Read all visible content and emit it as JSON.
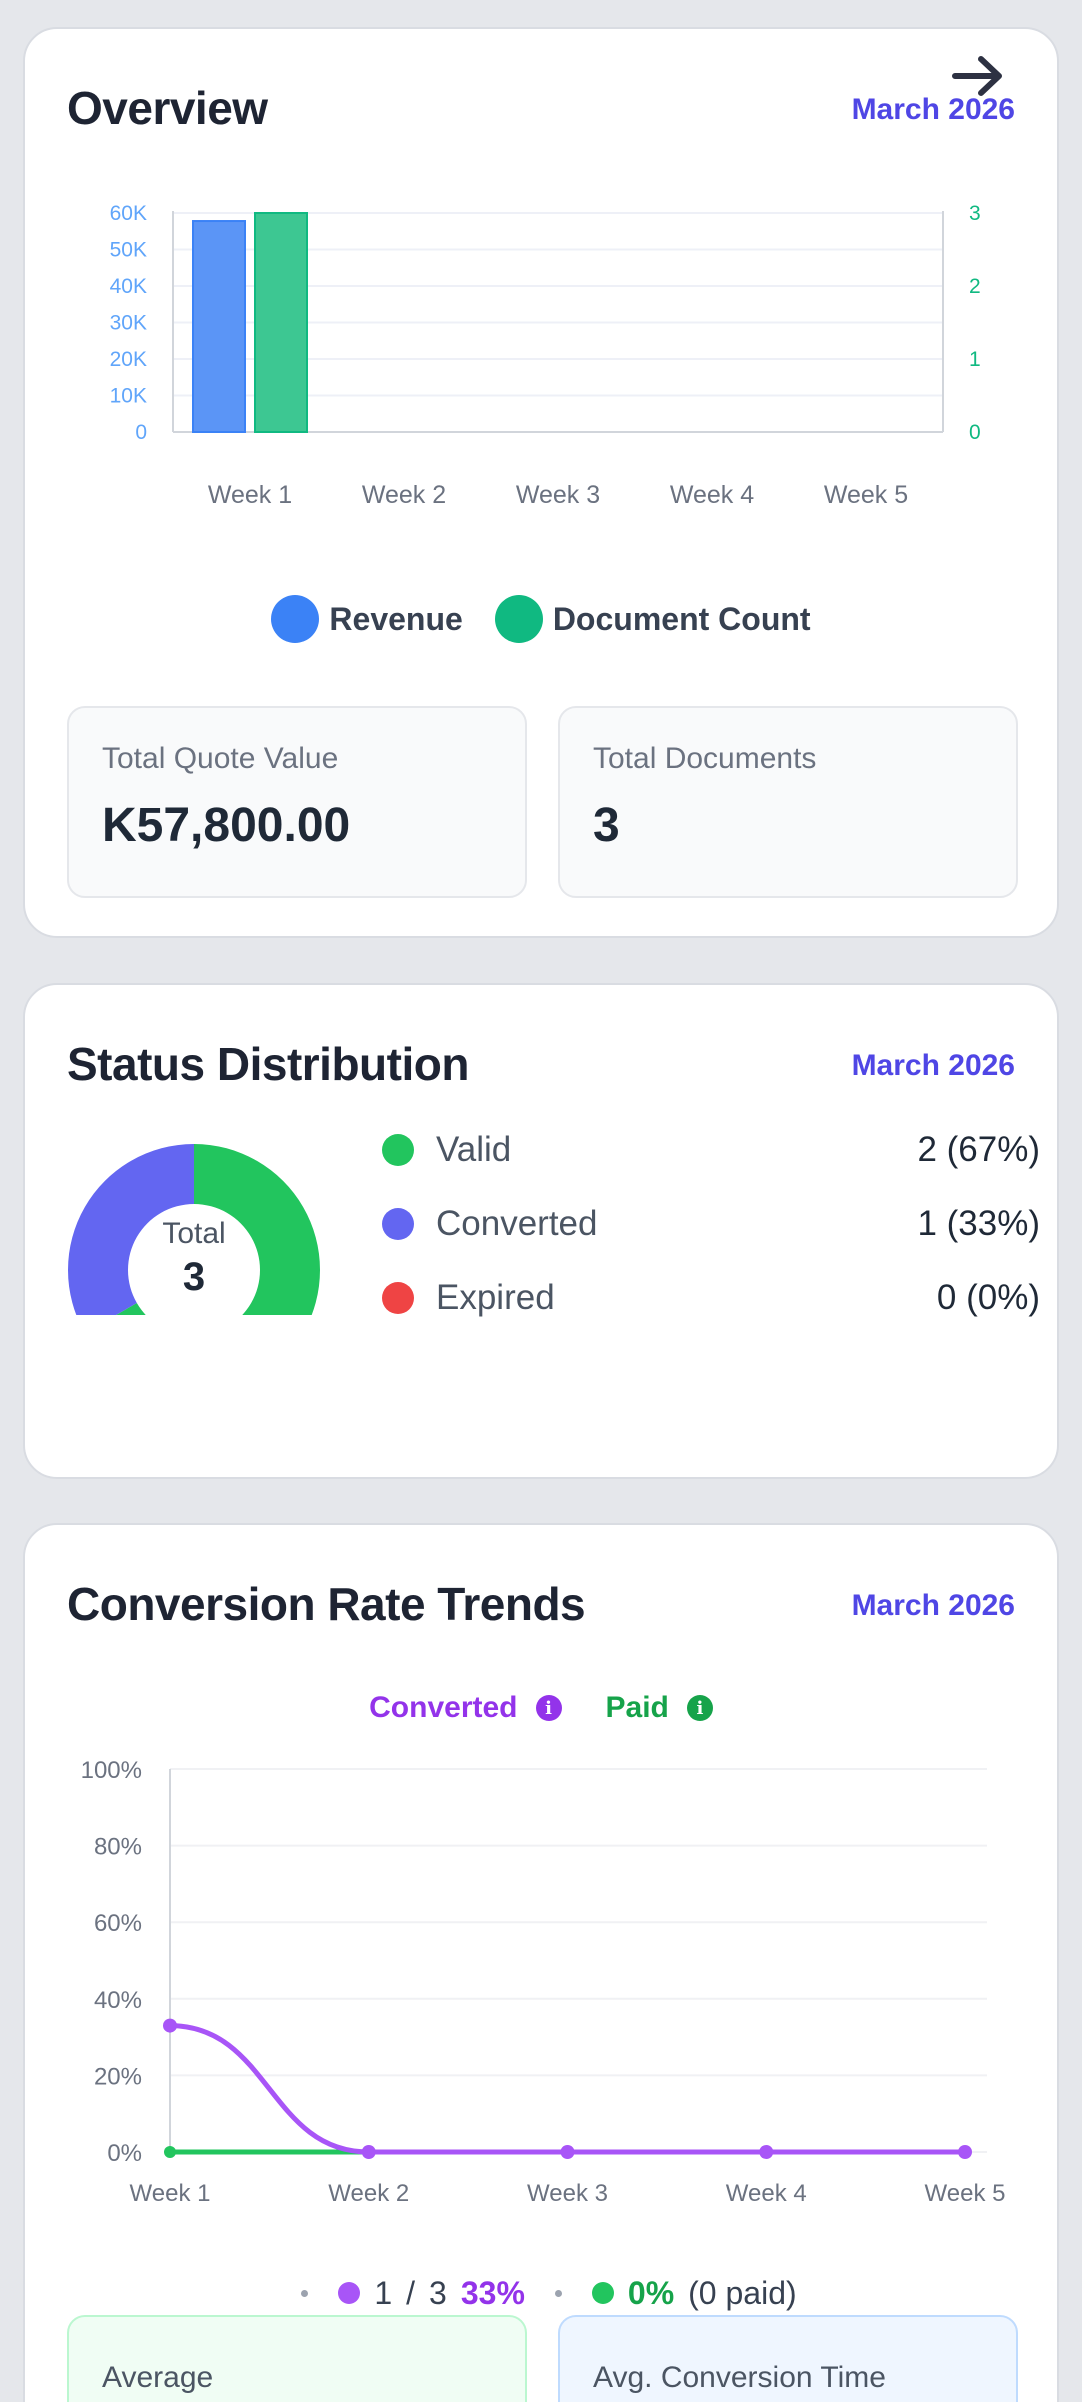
{
  "overview": {
    "title": "Overview",
    "date": "March 2026",
    "chart_data": {
      "type": "bar",
      "categories": [
        "Week 1",
        "Week 2",
        "Week 3",
        "Week 4",
        "Week 5"
      ],
      "series": [
        {
          "name": "Revenue",
          "values": [
            57800,
            0,
            0,
            0,
            0
          ],
          "color": "#3b82f6",
          "axis": "left"
        },
        {
          "name": "Document Count",
          "values": [
            3,
            0,
            0,
            0,
            0
          ],
          "color": "#10b981",
          "axis": "right"
        }
      ],
      "y_left_ticks": [
        "0",
        "10K",
        "20K",
        "30K",
        "40K",
        "50K",
        "60K"
      ],
      "y_right_ticks": [
        "0",
        "1",
        "2",
        "3"
      ],
      "ylim_left": [
        0,
        60000
      ],
      "ylim_right": [
        0,
        3
      ]
    },
    "legend": [
      {
        "label": "Revenue",
        "color": "#3b82f6"
      },
      {
        "label": "Document Count",
        "color": "#10b981"
      }
    ],
    "stats": [
      {
        "label": "Total Quote Value",
        "value": "K57,800.00"
      },
      {
        "label": "Total Documents",
        "value": "3"
      }
    ]
  },
  "status": {
    "title": "Status Distribution",
    "date": "March 2026",
    "total_label": "Total",
    "total_value": "3",
    "chart_data": {
      "type": "pie",
      "labels": [
        "Valid",
        "Converted",
        "Expired"
      ],
      "values": [
        2,
        1,
        0
      ],
      "colors": [
        "#22c55e",
        "#6366f1",
        "#ef4444"
      ]
    },
    "items": [
      {
        "label": "Valid",
        "value": "2 (67%)",
        "color": "#22c55e"
      },
      {
        "label": "Converted",
        "value": "1 (33%)",
        "color": "#6366f1"
      },
      {
        "label": "Expired",
        "value": "0 (0%)",
        "color": "#ef4444"
      }
    ]
  },
  "conversion": {
    "title": "Conversion Rate Trends",
    "date": "March 2026",
    "legend": {
      "converted": "Converted",
      "paid": "Paid",
      "converted_color": "#9333ea",
      "paid_color": "#16a34a",
      "info_icon": "info-icon"
    },
    "chart_data": {
      "type": "line",
      "x": [
        "Week 1",
        "Week 2",
        "Week 3",
        "Week 4",
        "Week 5"
      ],
      "series": [
        {
          "name": "Converted",
          "values": [
            33,
            0,
            0,
            0,
            0
          ],
          "color": "#a855f7"
        },
        {
          "name": "Paid",
          "values": [
            0,
            0,
            null,
            null,
            null
          ],
          "color": "#22c55e"
        }
      ],
      "y_ticks": [
        "0%",
        "20%",
        "40%",
        "60%",
        "80%",
        "100%"
      ],
      "ylim": [
        0,
        100
      ]
    },
    "summary": {
      "converted_count": "1",
      "separator": "/",
      "total_count": "3",
      "converted_pct": "33%",
      "paid_pct": "0%",
      "paid_note": "(0 paid)"
    },
    "boxes": [
      {
        "label": "Average"
      },
      {
        "label": "Avg. Conversion Time"
      }
    ]
  }
}
